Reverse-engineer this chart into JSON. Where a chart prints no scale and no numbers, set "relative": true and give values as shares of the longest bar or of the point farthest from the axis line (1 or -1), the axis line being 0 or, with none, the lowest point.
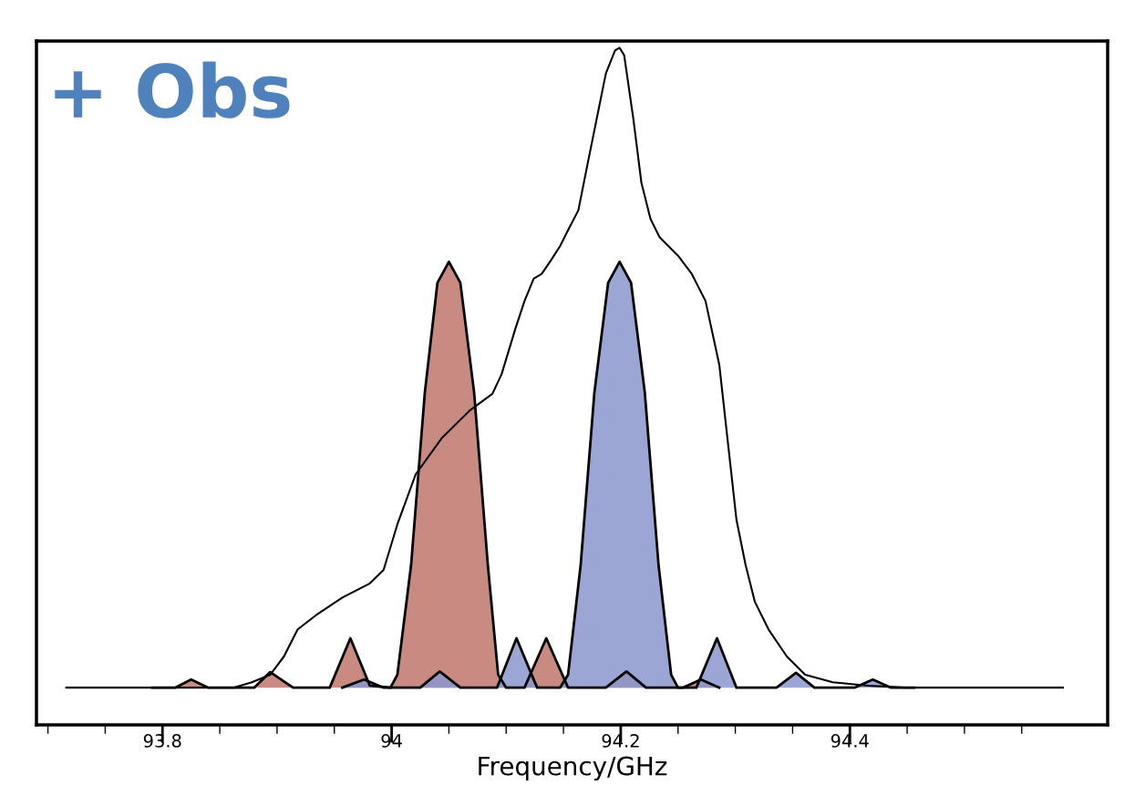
{
  "chart_data": {
    "type": "line",
    "relative": true,
    "xlabel": "Frequency/GHz",
    "annotations": [
      "+ Obs"
    ],
    "xlim": [
      93.69,
      94.625
    ],
    "xticks": [
      {
        "value": 93.7,
        "label": null
      },
      {
        "value": 93.75,
        "label": null
      },
      93.8,
      {
        "value": 93.85,
        "label": null
      },
      {
        "value": 93.9,
        "label": null
      },
      {
        "value": 93.95,
        "label": null
      },
      94,
      {
        "value": 94.05,
        "label": null
      },
      {
        "value": 94.1,
        "label": null
      },
      {
        "value": 94.15,
        "label": null
      },
      94.2,
      {
        "value": 94.25,
        "label": null
      },
      {
        "value": 94.3,
        "label": null
      },
      {
        "value": 94.35,
        "label": null
      },
      94.4,
      {
        "value": 94.45,
        "label": null
      },
      {
        "value": 94.5,
        "label": null
      },
      {
        "value": 94.55,
        "label": null
      }
    ],
    "tick_labels": "x",
    "grid": false,
    "series": [
      {
        "type": "area",
        "color": "#c0756b",
        "x": [
          93.791,
          93.811,
          93.825,
          93.84,
          93.88,
          93.894,
          93.914,
          93.946,
          93.964,
          93.981,
          93.999,
          94.005,
          94.017,
          94.029,
          94.04,
          94.05,
          94.06,
          94.072,
          94.084,
          94.093,
          94.1,
          94.116,
          94.135,
          94.154,
          94.187,
          94.205,
          94.222,
          94.254,
          94.27,
          94.286
        ],
        "values": [
          0.055,
          0.055,
          0.067,
          0.055,
          0.055,
          0.078,
          0.055,
          0.055,
          0.128,
          0.058,
          0.055,
          0.074,
          0.236,
          0.491,
          0.653,
          0.684,
          0.653,
          0.491,
          0.236,
          0.074,
          0.055,
          0.055,
          0.128,
          0.055,
          0.055,
          0.079,
          0.055,
          0.055,
          0.067,
          0.055
        ]
      },
      {
        "type": "area",
        "color": "#8b96cc",
        "x": [
          93.957,
          93.976,
          93.993,
          94.025,
          94.042,
          94.06,
          94.092,
          94.109,
          94.127,
          94.147,
          94.154,
          94.165,
          94.177,
          94.189,
          94.199,
          94.209,
          94.221,
          94.233,
          94.244,
          94.25,
          94.266,
          94.284,
          94.301,
          94.336,
          94.353,
          94.369,
          94.404,
          94.42,
          94.436,
          94.456
        ],
        "values": [
          0.055,
          0.067,
          0.055,
          0.055,
          0.079,
          0.055,
          0.055,
          0.128,
          0.055,
          0.055,
          0.074,
          0.236,
          0.491,
          0.653,
          0.684,
          0.653,
          0.491,
          0.236,
          0.074,
          0.055,
          0.055,
          0.128,
          0.055,
          0.055,
          0.077,
          0.055,
          0.055,
          0.067,
          0.055,
          0.055
        ]
      },
      {
        "color": "#000000",
        "x": [
          93.716,
          93.862,
          93.878,
          93.894,
          93.906,
          93.918,
          93.934,
          93.957,
          93.981,
          93.993,
          94.005,
          94.021,
          94.044,
          94.068,
          94.088,
          94.096,
          94.108,
          94.116,
          94.124,
          94.131,
          94.139,
          94.147,
          94.155,
          94.163,
          94.171,
          94.179,
          94.187,
          94.195,
          94.199,
          94.203,
          94.211,
          94.218,
          94.226,
          94.234,
          94.25,
          94.262,
          94.274,
          94.286,
          94.294,
          94.301,
          94.309,
          94.317,
          94.329,
          94.345,
          94.361,
          94.385,
          94.416,
          94.448,
          94.527,
          94.586
        ],
        "values": [
          0.055,
          0.055,
          0.063,
          0.074,
          0.101,
          0.141,
          0.162,
          0.188,
          0.209,
          0.229,
          0.296,
          0.37,
          0.424,
          0.464,
          0.489,
          0.518,
          0.585,
          0.626,
          0.659,
          0.666,
          0.686,
          0.707,
          0.734,
          0.76,
          0.828,
          0.895,
          0.962,
          0.996,
          1,
          0.989,
          0.895,
          0.801,
          0.747,
          0.72,
          0.693,
          0.666,
          0.626,
          0.532,
          0.41,
          0.303,
          0.236,
          0.182,
          0.141,
          0.101,
          0.074,
          0.063,
          0.058,
          0.055,
          0.055,
          0.055
        ]
      }
    ]
  }
}
